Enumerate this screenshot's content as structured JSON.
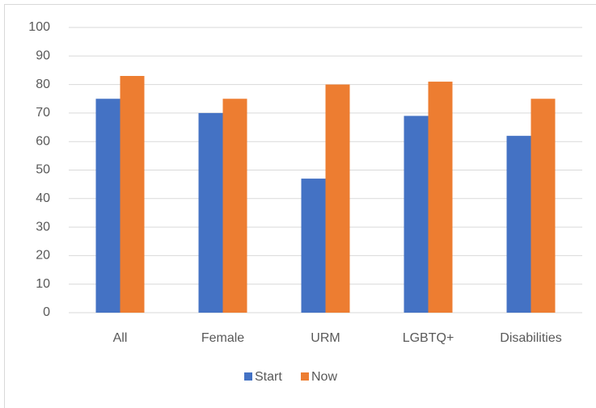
{
  "chart_data": {
    "type": "bar",
    "categories": [
      "All",
      "Female",
      "URM",
      "LGBTQ+",
      "Disabilities"
    ],
    "series": [
      {
        "name": "Start",
        "color": "#4472c4",
        "values": [
          75,
          70,
          47,
          69,
          62
        ]
      },
      {
        "name": "Now",
        "color": "#ed7d31",
        "values": [
          83,
          75,
          80,
          81,
          75
        ]
      }
    ],
    "ylim": [
      0,
      100
    ],
    "yticks": [
      0,
      10,
      20,
      30,
      40,
      50,
      60,
      70,
      80,
      90,
      100
    ],
    "grid": true,
    "legend": "bottom"
  }
}
